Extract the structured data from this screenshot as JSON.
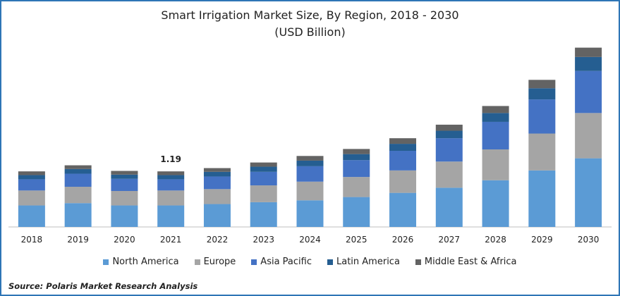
{
  "chart_data": {
    "type": "bar",
    "stacked": true,
    "title": "Smart Irrigation Market Size, By Region, 2018 - 2030",
    "subtitle": "(USD Billion)",
    "categories": [
      "2018",
      "2019",
      "2020",
      "2021",
      "2022",
      "2023",
      "2024",
      "2025",
      "2026",
      "2027",
      "2028",
      "2029",
      "2030"
    ],
    "series": [
      {
        "name": "North America",
        "color": "#5b9bd5",
        "values": [
          0.46,
          0.51,
          0.46,
          0.46,
          0.49,
          0.53,
          0.57,
          0.64,
          0.73,
          0.84,
          1.0,
          1.21,
          1.47
        ]
      },
      {
        "name": "Europe",
        "color": "#a5a5a5",
        "values": [
          0.32,
          0.35,
          0.31,
          0.32,
          0.32,
          0.36,
          0.4,
          0.43,
          0.48,
          0.56,
          0.66,
          0.79,
          0.97
        ]
      },
      {
        "name": "Asia Pacific",
        "color": "#4472c4",
        "values": [
          0.24,
          0.28,
          0.26,
          0.24,
          0.27,
          0.29,
          0.33,
          0.36,
          0.42,
          0.5,
          0.59,
          0.73,
          0.9
        ]
      },
      {
        "name": "Latin America",
        "color": "#255e91",
        "values": [
          0.09,
          0.1,
          0.09,
          0.09,
          0.1,
          0.11,
          0.12,
          0.13,
          0.15,
          0.16,
          0.19,
          0.24,
          0.3
        ]
      },
      {
        "name": "Middle East & Africa",
        "color": "#636363",
        "values": [
          0.08,
          0.08,
          0.08,
          0.08,
          0.08,
          0.09,
          0.1,
          0.11,
          0.12,
          0.13,
          0.15,
          0.18,
          0.2
        ]
      }
    ],
    "annotations": [
      {
        "category": "2021",
        "label": "1.19"
      }
    ],
    "ylim": [
      0,
      4
    ],
    "grid": false,
    "legend": "bottom"
  },
  "source": "Source: Polaris  Market Research Analysis"
}
